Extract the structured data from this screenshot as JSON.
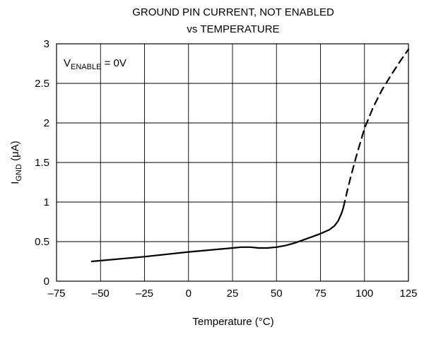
{
  "chart_data": {
    "type": "line",
    "title": "GROUND PIN CURRENT, NOT ENABLED",
    "subtitle": "vs TEMPERATURE",
    "xlabel": "Temperature (°C)",
    "ylabel": {
      "main": "I",
      "sub": "GND",
      "unit": " (μA)"
    },
    "annotation": {
      "main": "V",
      "sub": "ENABLE",
      "rest": " = 0V"
    },
    "xlim": [
      -75,
      125
    ],
    "ylim": [
      0,
      3
    ],
    "x_ticks": [
      -75,
      -50,
      -25,
      0,
      25,
      50,
      75,
      100,
      125
    ],
    "y_ticks": [
      0,
      0.5,
      1,
      1.5,
      2,
      2.5,
      3
    ],
    "x_tick_labels": [
      "–75",
      "–50",
      "–25",
      "0",
      "25",
      "50",
      "75",
      "100",
      "125"
    ],
    "y_tick_labels": [
      "0",
      "0.5",
      "1",
      "1.5",
      "2",
      "2.5",
      "3"
    ],
    "grid": true,
    "series": [
      {
        "style": "solid",
        "x": [
          -55,
          -25,
          0,
          25,
          30,
          35,
          40,
          45,
          50,
          55,
          60,
          65,
          70,
          75,
          80,
          83,
          85,
          87,
          88
        ],
        "y": [
          0.25,
          0.31,
          0.37,
          0.42,
          0.43,
          0.43,
          0.42,
          0.42,
          0.43,
          0.45,
          0.48,
          0.52,
          0.56,
          0.6,
          0.65,
          0.7,
          0.76,
          0.86,
          0.93
        ]
      },
      {
        "style": "dashed",
        "x": [
          88,
          90,
          92,
          95,
          98,
          100,
          105,
          110,
          115,
          120,
          125
        ],
        "y": [
          0.93,
          1.12,
          1.3,
          1.55,
          1.78,
          1.93,
          2.2,
          2.42,
          2.6,
          2.77,
          2.93
        ]
      }
    ]
  }
}
